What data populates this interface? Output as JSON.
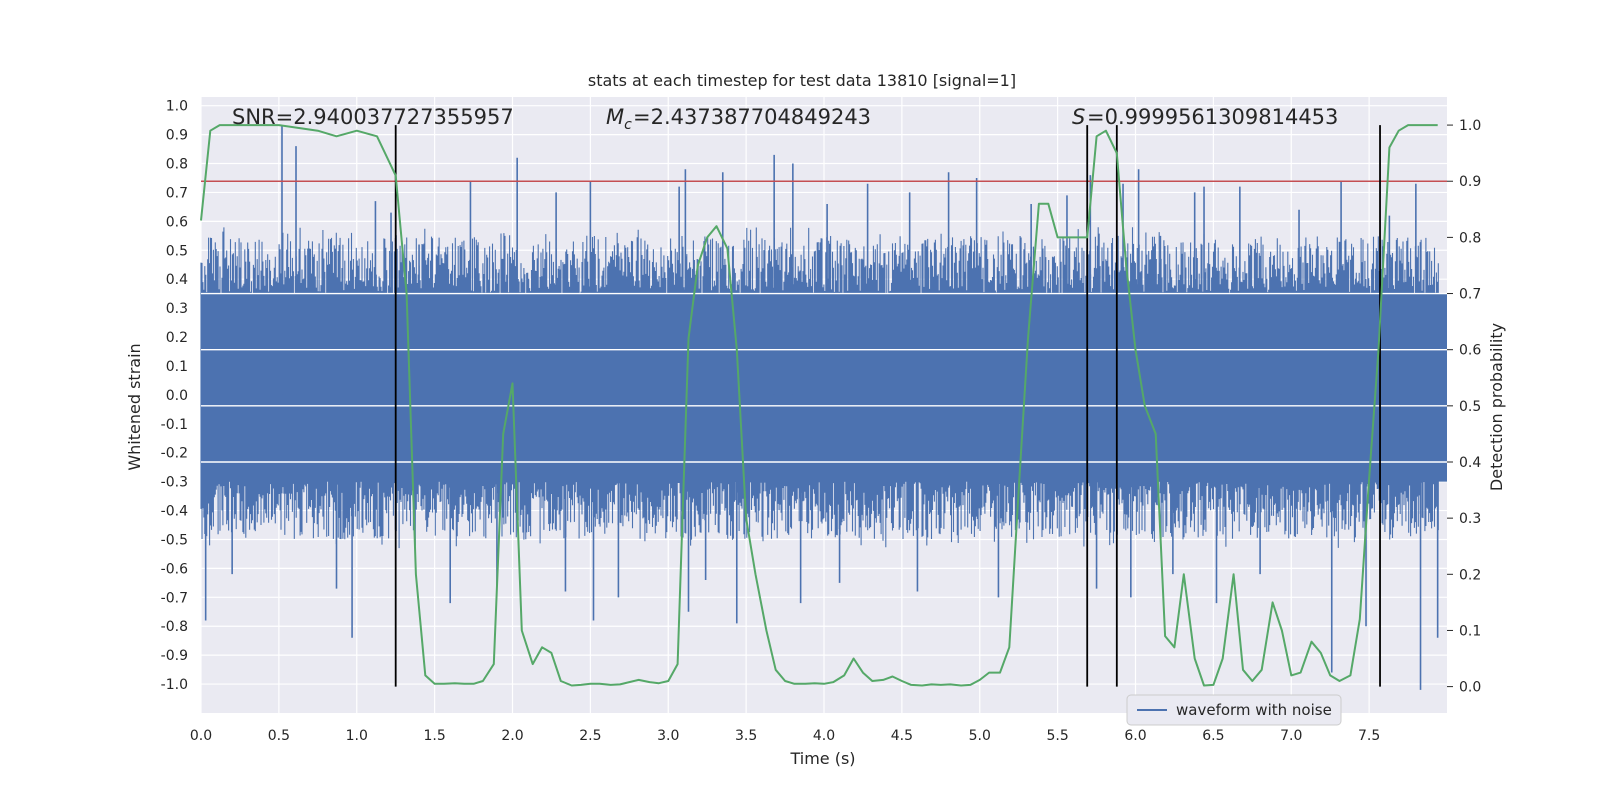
{
  "chart_data": {
    "type": "line",
    "title": "stats at each timestep for test data 13810 [signal=1]",
    "xlabel": "Time (s)",
    "ylabel": "Whitened strain",
    "y2label": "Detection probability",
    "xlim": [
      0.0,
      8.0
    ],
    "ylim": [
      -1.1,
      1.03
    ],
    "y2lim": [
      -0.047,
      1.05
    ],
    "xticks": [
      "0.0",
      "0.5",
      "1.0",
      "1.5",
      "2.0",
      "2.5",
      "3.0",
      "3.5",
      "4.0",
      "4.5",
      "5.0",
      "5.5",
      "6.0",
      "6.5",
      "7.0",
      "7.5"
    ],
    "yticks": [
      "1.0",
      "0.9",
      "0.8",
      "0.7",
      "0.6",
      "0.5",
      "0.4",
      "0.3",
      "0.2",
      "0.1",
      "0.0",
      "-0.1",
      "-0.2",
      "-0.3",
      "-0.4",
      "-0.5",
      "-0.6",
      "-0.7",
      "-0.8",
      "-0.9",
      "-1.0"
    ],
    "y2ticks": [
      "1.0",
      "0.9",
      "0.8",
      "0.7",
      "0.6",
      "0.5",
      "0.4",
      "0.3",
      "0.2",
      "0.1",
      "0.0"
    ],
    "annotations": {
      "snr": "SNR=2.940037727355957",
      "mc": "=2.437387704849243",
      "s": "=0.9999561309814453"
    },
    "threshold": 0.9,
    "vertical_lines": [
      1.25,
      5.69,
      5.88,
      7.57
    ],
    "legend": "waveform with noise",
    "legend_position": "lower-right",
    "waveform_spikes": [
      [
        0.03,
        -0.78
      ],
      [
        0.2,
        -0.62
      ],
      [
        0.52,
        0.93
      ],
      [
        0.61,
        0.86
      ],
      [
        0.87,
        -0.67
      ],
      [
        0.97,
        -0.84
      ],
      [
        1.12,
        0.67
      ],
      [
        1.22,
        0.63
      ],
      [
        1.4,
        0.52
      ],
      [
        1.6,
        -0.72
      ],
      [
        1.73,
        0.74
      ],
      [
        1.9,
        -0.66
      ],
      [
        1.95,
        0.55
      ],
      [
        2.03,
        0.82
      ],
      [
        2.28,
        0.7
      ],
      [
        2.34,
        -0.68
      ],
      [
        2.5,
        0.74
      ],
      [
        2.52,
        -0.78
      ],
      [
        2.68,
        -0.7
      ],
      [
        3.07,
        0.72
      ],
      [
        3.11,
        0.78
      ],
      [
        3.13,
        -0.75
      ],
      [
        3.24,
        -0.64
      ],
      [
        3.35,
        0.77
      ],
      [
        3.44,
        -0.79
      ],
      [
        3.68,
        0.83
      ],
      [
        3.8,
        0.8
      ],
      [
        3.85,
        -0.72
      ],
      [
        4.02,
        0.66
      ],
      [
        4.1,
        -0.65
      ],
      [
        4.28,
        0.73
      ],
      [
        4.55,
        0.7
      ],
      [
        4.6,
        -0.68
      ],
      [
        4.8,
        0.77
      ],
      [
        4.98,
        0.75
      ],
      [
        5.12,
        -0.7
      ],
      [
        5.33,
        0.66
      ],
      [
        5.56,
        0.69
      ],
      [
        5.71,
        0.76
      ],
      [
        5.75,
        -0.67
      ],
      [
        5.92,
        0.73
      ],
      [
        5.97,
        -0.7
      ],
      [
        6.02,
        0.78
      ],
      [
        6.16,
        0.55
      ],
      [
        6.24,
        -0.62
      ],
      [
        6.38,
        0.7
      ],
      [
        6.44,
        0.72
      ],
      [
        6.52,
        -0.72
      ],
      [
        6.67,
        0.72
      ],
      [
        6.8,
        -0.62
      ],
      [
        7.05,
        0.64
      ],
      [
        7.26,
        -0.96
      ],
      [
        7.32,
        0.74
      ],
      [
        7.48,
        -0.8
      ],
      [
        7.63,
        0.62
      ],
      [
        7.8,
        0.73
      ],
      [
        7.83,
        -1.02
      ],
      [
        7.94,
        -0.84
      ]
    ],
    "series": [
      {
        "name": "detection probability",
        "axis": "right",
        "x": [
          0.0,
          0.06,
          0.12,
          0.19,
          0.25,
          0.5,
          0.75,
          0.87,
          1.0,
          1.13,
          1.25,
          1.32,
          1.38,
          1.44,
          1.5,
          1.56,
          1.63,
          1.69,
          1.75,
          1.81,
          1.88,
          1.94,
          2.0,
          2.06,
          2.13,
          2.19,
          2.25,
          2.31,
          2.38,
          2.44,
          2.5,
          2.56,
          2.63,
          2.69,
          2.75,
          2.81,
          2.88,
          2.94,
          3.0,
          3.06,
          3.13,
          3.19,
          3.25,
          3.31,
          3.38,
          3.44,
          3.5,
          3.56,
          3.63,
          3.69,
          3.75,
          3.81,
          3.88,
          3.94,
          4.0,
          4.06,
          4.13,
          4.19,
          4.25,
          4.31,
          4.38,
          4.44,
          4.5,
          4.56,
          4.63,
          4.69,
          4.75,
          4.81,
          4.88,
          4.94,
          5.0,
          5.06,
          5.13,
          5.19,
          5.25,
          5.31,
          5.38,
          5.44,
          5.5,
          5.56,
          5.63,
          5.69,
          5.75,
          5.81,
          5.88,
          5.94,
          6.0,
          6.06,
          6.13,
          6.19,
          6.25,
          6.31,
          6.38,
          6.44,
          6.5,
          6.56,
          6.63,
          6.69,
          6.75,
          6.81,
          6.88,
          6.94,
          7.0,
          7.06,
          7.13,
          7.19,
          7.25,
          7.31,
          7.38,
          7.44,
          7.5,
          7.56,
          7.63,
          7.69,
          7.75,
          7.81,
          7.88,
          7.94
        ],
        "values": [
          0.83,
          0.99,
          1.0,
          1.0,
          1.0,
          1.0,
          0.99,
          0.98,
          0.99,
          0.98,
          0.91,
          0.7,
          0.2,
          0.02,
          0.005,
          0.005,
          0.006,
          0.005,
          0.005,
          0.01,
          0.04,
          0.45,
          0.54,
          0.1,
          0.04,
          0.07,
          0.06,
          0.01,
          0.002,
          0.003,
          0.005,
          0.005,
          0.003,
          0.004,
          0.008,
          0.012,
          0.008,
          0.006,
          0.01,
          0.04,
          0.62,
          0.75,
          0.8,
          0.82,
          0.78,
          0.6,
          0.3,
          0.2,
          0.1,
          0.03,
          0.01,
          0.005,
          0.005,
          0.006,
          0.005,
          0.008,
          0.02,
          0.05,
          0.025,
          0.01,
          0.012,
          0.018,
          0.01,
          0.003,
          0.002,
          0.004,
          0.003,
          0.004,
          0.002,
          0.003,
          0.012,
          0.025,
          0.025,
          0.07,
          0.35,
          0.62,
          0.86,
          0.86,
          0.8,
          0.8,
          0.8,
          0.8,
          0.98,
          0.99,
          0.95,
          0.75,
          0.6,
          0.5,
          0.45,
          0.09,
          0.07,
          0.2,
          0.05,
          0.002,
          0.003,
          0.05,
          0.2,
          0.03,
          0.01,
          0.03,
          0.15,
          0.1,
          0.02,
          0.025,
          0.08,
          0.06,
          0.02,
          0.01,
          0.02,
          0.12,
          0.37,
          0.6,
          0.96,
          0.99,
          1.0,
          1.0,
          1.0,
          1.0
        ]
      },
      {
        "name": "waveform with noise",
        "axis": "left",
        "kind": "dense-noise",
        "core_range": [
          -0.3,
          0.35
        ],
        "typical_extreme_range": [
          -0.5,
          0.55
        ]
      }
    ]
  }
}
